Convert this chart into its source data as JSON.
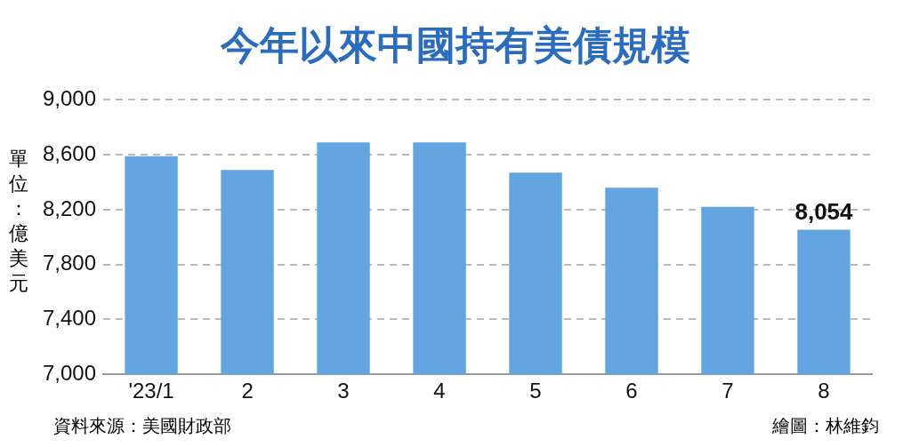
{
  "chart_data": {
    "type": "bar",
    "title": "今年以來中國持有美債規模",
    "ylabel": "單位：億美元",
    "categories": [
      "'23/1",
      "2",
      "3",
      "4",
      "5",
      "6",
      "7",
      "8"
    ],
    "values": [
      8590,
      8490,
      8690,
      8690,
      8470,
      8360,
      8220,
      8054
    ],
    "value_labels": [
      null,
      null,
      null,
      null,
      null,
      null,
      null,
      "8,054"
    ],
    "color": "#62a5e0",
    "ylim": [
      7000,
      9000
    ],
    "yticks": [
      {
        "value": 7000,
        "label": "7,000"
      },
      {
        "value": 7400,
        "label": "7,400"
      },
      {
        "value": 7800,
        "label": "7,800"
      },
      {
        "value": 8200,
        "label": "8,200"
      },
      {
        "value": 8600,
        "label": "8,600"
      },
      {
        "value": 9000,
        "label": "9,000"
      }
    ],
    "grid": "y",
    "legend": false,
    "annotations": [
      "資料來源：美國財政部",
      "繪圖：林維鈞"
    ]
  }
}
